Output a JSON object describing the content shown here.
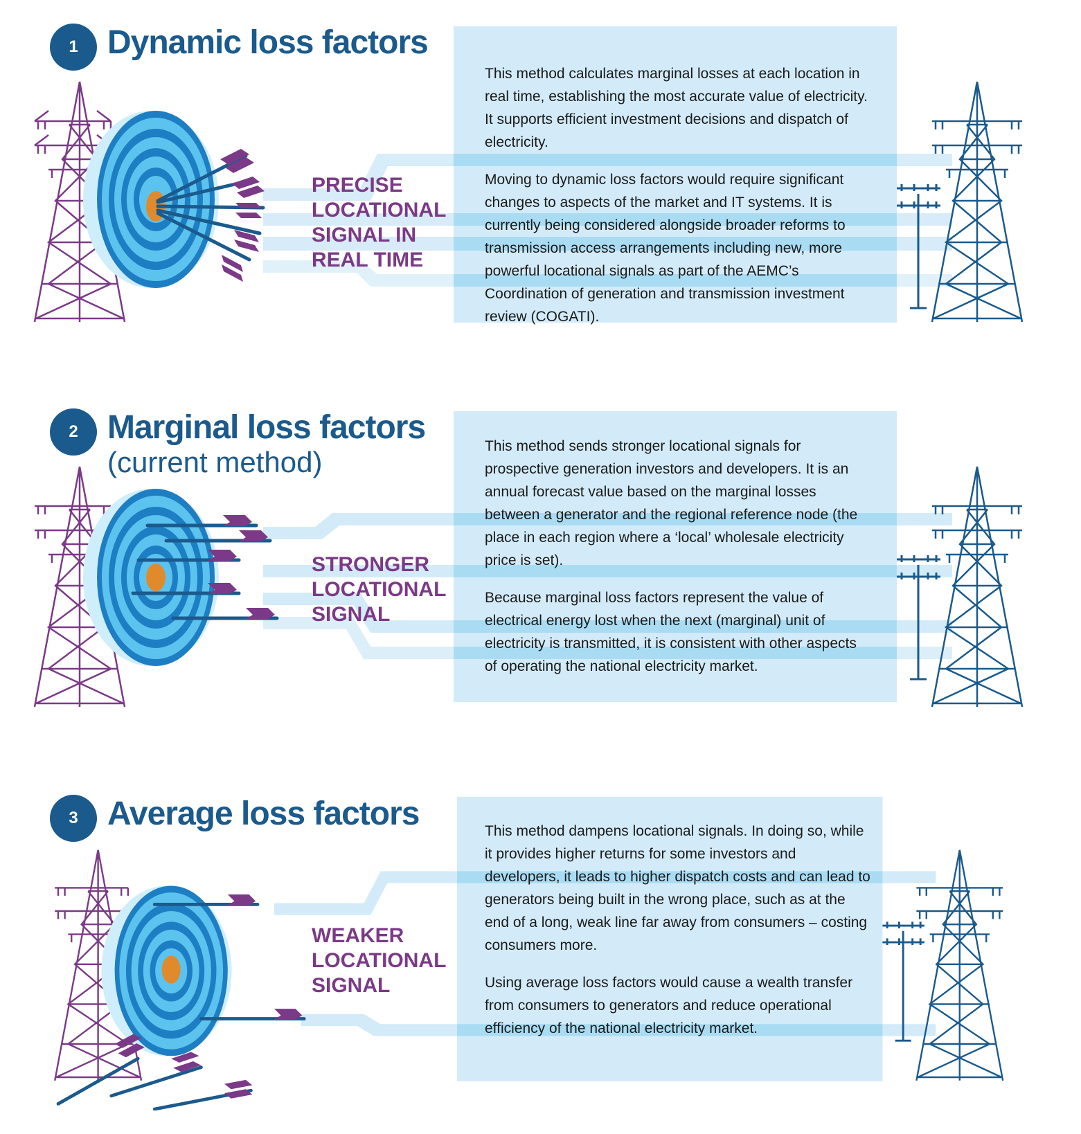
{
  "sections": [
    {
      "number": "1",
      "title": "Dynamic loss factors",
      "subtitle": "",
      "signal_lines": [
        "PRECISE",
        "LOCATIONAL",
        "SIGNAL IN",
        "REAL TIME"
      ],
      "paragraphs": [
        "This method calculates marginal losses at each location in real time, establishing the most accurate value of electricity. It supports efficient investment decisions and dispatch of electricity.",
        "Moving to dynamic loss factors would require significant changes to aspects of the market and IT systems. It is currently being considered alongside broader reforms to transmission access arrangements including new, more powerful locational signals as part of the AEMC’s Coordination of generation and transmission investment review (COGATI)."
      ]
    },
    {
      "number": "2",
      "title": "Marginal loss factors",
      "subtitle": "(current method)",
      "signal_lines": [
        "STRONGER",
        "LOCATIONAL",
        "SIGNAL"
      ],
      "paragraphs": [
        "This method sends stronger locational signals for prospective generation investors and developers. It is an annual forecast value based on the marginal losses between a generator and the regional reference node (the place in each region where a ‘local’ wholesale electricity price is set).",
        "Because marginal loss factors represent the value of electrical energy lost when the next (marginal) unit of electricity is transmitted, it is consistent with other aspects of operating the national electricity market."
      ]
    },
    {
      "number": "3",
      "title": "Average loss factors",
      "subtitle": "",
      "signal_lines": [
        "WEAKER",
        "LOCATIONAL",
        "SIGNAL"
      ],
      "paragraphs": [
        "This method dampens locational signals. In doing so, while it provides higher returns for some investors and developers, it leads to higher dispatch costs and can lead to generators being built in the wrong place, such as at the end of a long, weak line far away from consumers – costing consumers more.",
        "Using average loss factors would cause a wealth transfer from consumers to generators and reduce operational efficiency of the national electricity market."
      ]
    }
  ],
  "colors": {
    "heading_blue": "#1b5a8c",
    "signal_purple": "#7b3a87",
    "panel_light_blue": "#d3ebf8",
    "target_dark_blue": "#1e7ec4",
    "target_light_blue": "#5cc3ee",
    "bullseye_orange": "#e08a2b"
  },
  "icons": [
    "pylon-purple-icon",
    "target-icon",
    "arrow-icon",
    "pylon-blue-icon",
    "power-pole-icon"
  ]
}
